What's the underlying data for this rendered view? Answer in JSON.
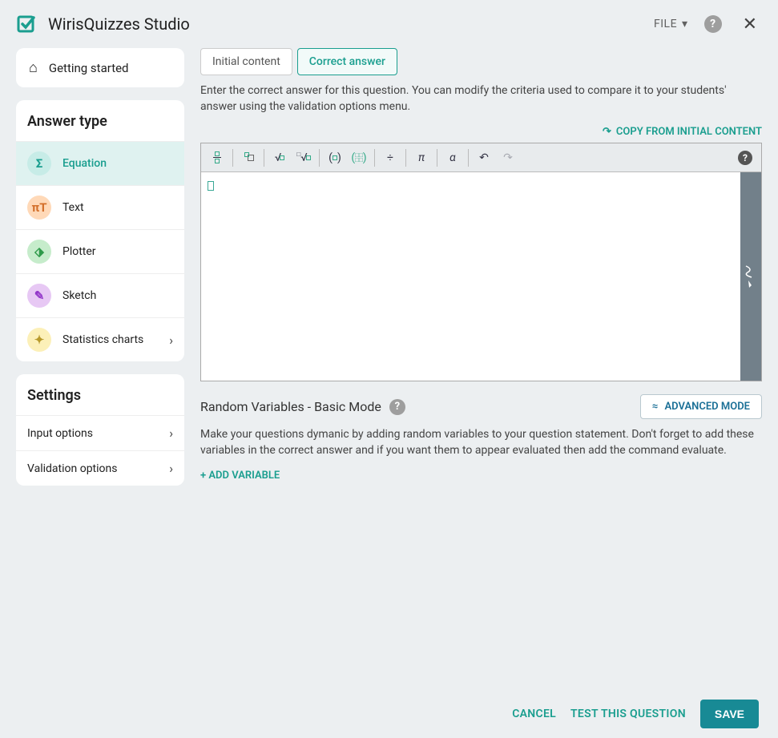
{
  "app": {
    "title": "WirisQuizzes Studio",
    "accent_color": "#1a9e8f",
    "background_color": "#eceff1"
  },
  "topbar": {
    "file_label": "FILE"
  },
  "sidebar": {
    "getting_started": "Getting started",
    "answer_type": {
      "heading": "Answer type",
      "items": [
        {
          "label": "Equation",
          "icon": "Σ",
          "icon_bg": "#c7ece7",
          "icon_color": "#1a9e8f",
          "active": true
        },
        {
          "label": "Text",
          "icon": "πT",
          "icon_bg": "#ffd9b8",
          "icon_color": "#d36f2a",
          "active": false
        },
        {
          "label": "Plotter",
          "icon": "⬗",
          "icon_bg": "#c6eccb",
          "icon_color": "#2e9a4a",
          "active": false
        },
        {
          "label": "Sketch",
          "icon": "✎",
          "icon_bg": "#e7c8f4",
          "icon_color": "#9336c9",
          "active": false
        },
        {
          "label": "Statistics charts",
          "icon": "✦",
          "icon_bg": "#fcf0b8",
          "icon_color": "#b89a2a",
          "active": false,
          "has_chevron": true
        }
      ]
    },
    "settings": {
      "heading": "Settings",
      "items": [
        {
          "label": "Input options"
        },
        {
          "label": "Validation options"
        }
      ]
    }
  },
  "main": {
    "tabs": [
      {
        "label": "Initial content",
        "active": false
      },
      {
        "label": "Correct answer",
        "active": true
      }
    ],
    "description": "Enter the correct answer for this question. You can modify the criteria used to compare it to your students' answer using the validation options menu.",
    "copy_link": "COPY FROM INITIAL CONTENT",
    "toolbar_icons": [
      "fraction",
      "superscript",
      "sqrt",
      "nth-root",
      "parentheses",
      "matrix",
      "division",
      "pi",
      "alpha",
      "undo",
      "redo"
    ],
    "random_vars": {
      "title": "Random Variables - Basic Mode",
      "adv_button": "ADVANCED MODE",
      "description": "Make your questions dymanic by adding random variables to your question statement. Don't forget to add these variables in the correct answer and if you want them to appear evaluated then add the command evaluate.",
      "add_button": "+ ADD VARIABLE"
    }
  },
  "footer": {
    "cancel": "CANCEL",
    "test": "TEST THIS QUESTION",
    "save": "SAVE"
  }
}
